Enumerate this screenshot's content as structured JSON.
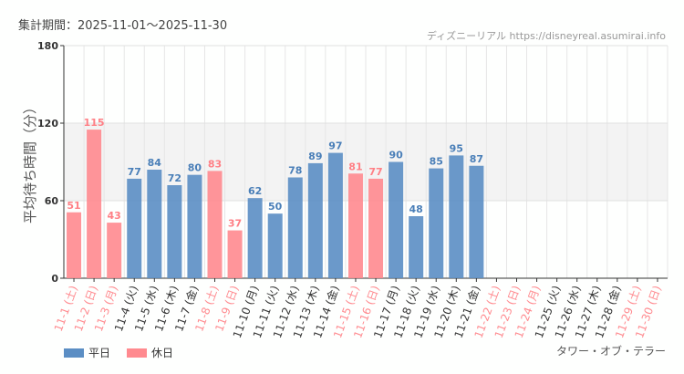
{
  "header": {
    "period": "集計期間：2025-11-01～2025-11-30",
    "credit": "ディズニーリアル https://disneyreal.asumirai.info"
  },
  "attraction": "タワー・オブ・テラー",
  "legend": [
    {
      "label": "平日",
      "color": "#5b8ec4"
    },
    {
      "label": "休日",
      "color": "#ff8a8f"
    }
  ],
  "chart_data": {
    "type": "bar",
    "ylabel": "平均待ち時間（分）",
    "ylim": [
      0,
      180
    ],
    "yticks": [
      0,
      60,
      120,
      180
    ],
    "shaded_band": [
      60,
      120
    ],
    "grid": true,
    "categories": [
      "11-1 (土)",
      "11-2 (日)",
      "11-3 (月)",
      "11-4 (火)",
      "11-5 (水)",
      "11-6 (木)",
      "11-7 (金)",
      "11-8 (土)",
      "11-9 (日)",
      "11-10 (月)",
      "11-11 (火)",
      "11-12 (水)",
      "11-13 (木)",
      "11-14 (金)",
      "11-15 (土)",
      "11-16 (日)",
      "11-17 (月)",
      "11-18 (火)",
      "11-19 (水)",
      "11-20 (木)",
      "11-21 (金)",
      "11-22 (土)",
      "11-23 (日)",
      "11-24 (月)",
      "11-25 (火)",
      "11-26 (水)",
      "11-27 (木)",
      "11-28 (金)",
      "11-29 (土)",
      "11-30 (日)"
    ],
    "holiday": [
      true,
      true,
      true,
      false,
      false,
      false,
      false,
      true,
      true,
      false,
      false,
      false,
      false,
      false,
      true,
      true,
      false,
      false,
      false,
      false,
      false,
      true,
      true,
      true,
      false,
      false,
      false,
      false,
      true,
      true
    ],
    "values": [
      51,
      115,
      43,
      77,
      84,
      72,
      80,
      83,
      37,
      62,
      50,
      78,
      89,
      97,
      81,
      77,
      90,
      48,
      85,
      95,
      87,
      null,
      null,
      null,
      null,
      null,
      null,
      null,
      null,
      null
    ]
  }
}
